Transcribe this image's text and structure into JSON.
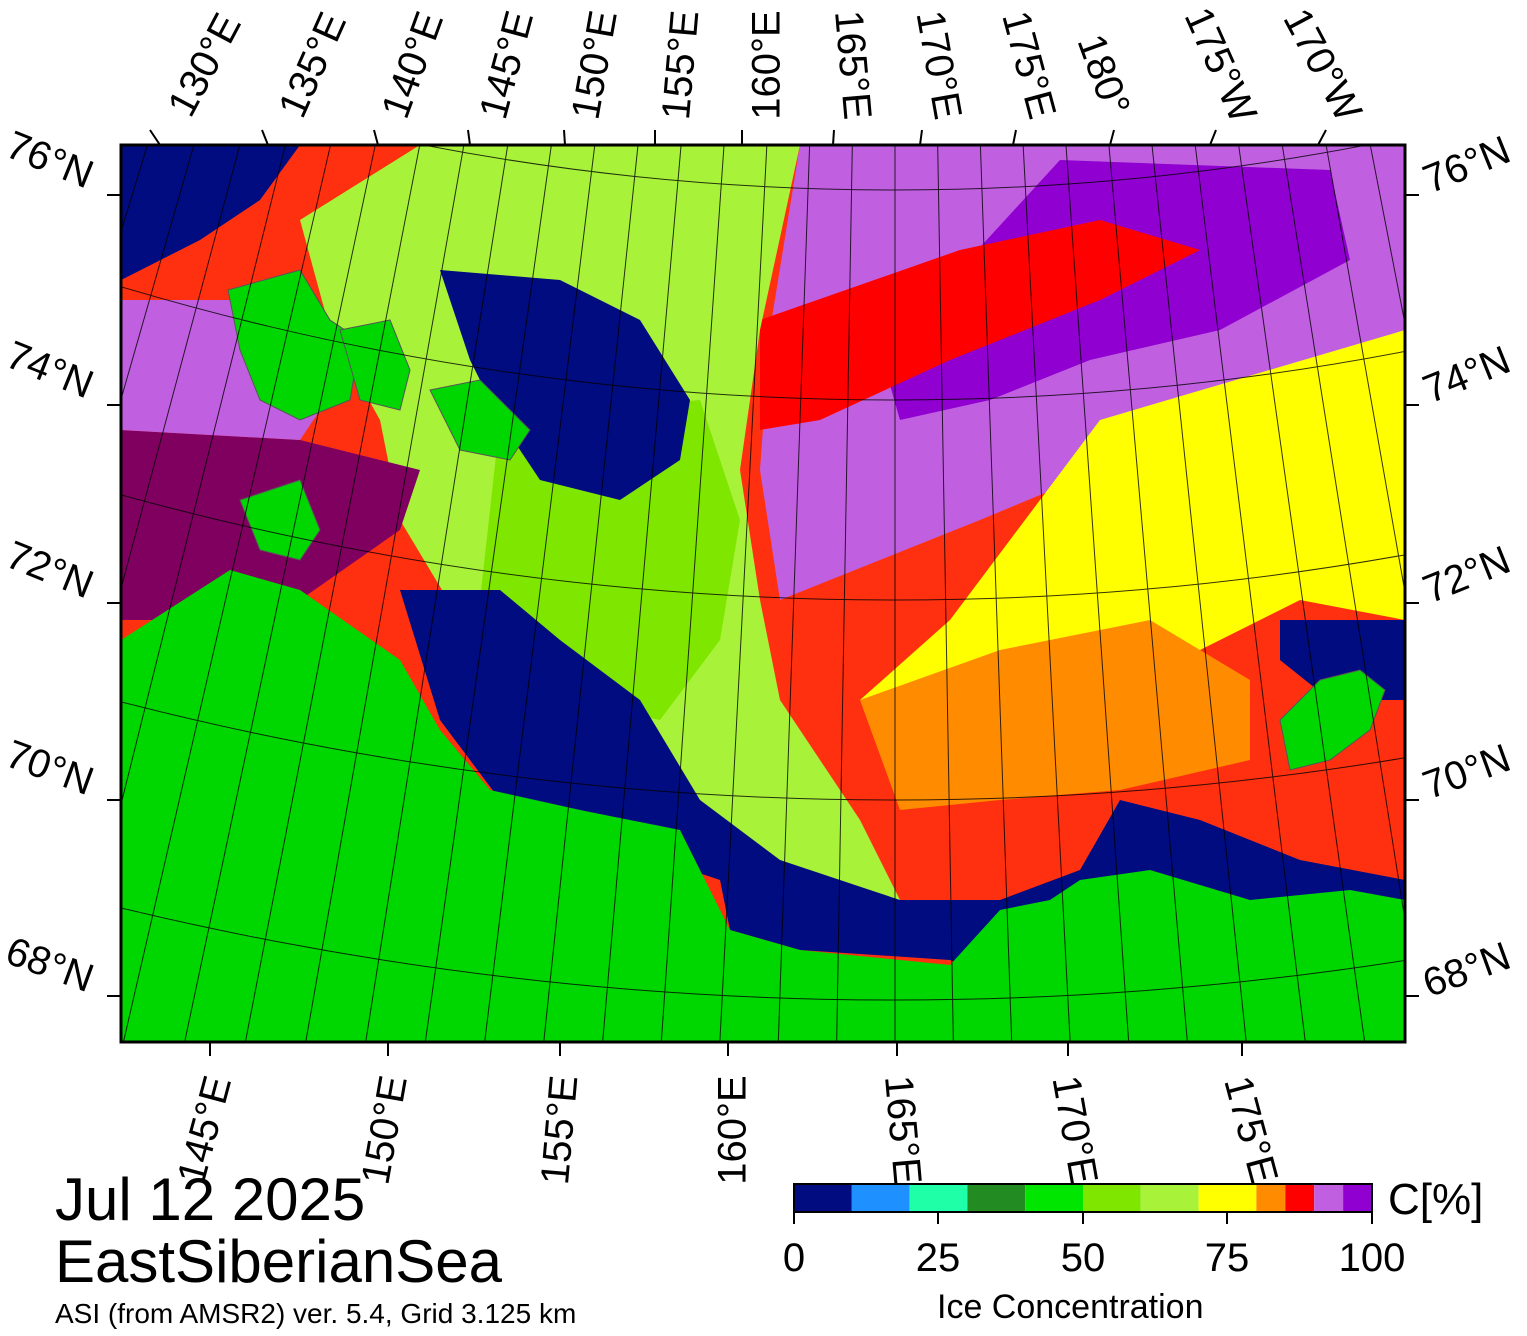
{
  "date": "Jul 12 2025",
  "region": "EastSiberianSea",
  "source": "ASI (from AMSR2) ver. 5.4,  Grid 3.125 km",
  "colorbar": {
    "title": "Ice Concentration",
    "unit": "C[%]",
    "ticks": [
      "0",
      "25",
      "50",
      "75",
      "100"
    ],
    "colors": [
      "#000c80",
      "#1e90ff",
      "#1fffa8",
      "#228b22",
      "#00e600",
      "#7fe600",
      "#a8f23a",
      "#ffff00",
      "#ff8c00",
      "#ff0000",
      "#c060e0",
      "#9000d0",
      "#800060"
    ]
  },
  "labels": {
    "top_lon": [
      "130°E",
      "135°E",
      "140°E",
      "145°E",
      "150°E",
      "155°E",
      "160°E",
      "165°E",
      "170°E",
      "175°E",
      "180°",
      "175°W",
      "170°W"
    ],
    "bottom_lon": [
      "145°E",
      "150°E",
      "155°E",
      "160°E",
      "165°E",
      "170°E",
      "175°E"
    ],
    "left_lat": [
      "76°N",
      "74°N",
      "72°N",
      "70°N",
      "68°N"
    ],
    "right_lat": [
      "76°N",
      "74°N",
      "72°N",
      "70°N",
      "68°N"
    ]
  },
  "map_colors": {
    "land": "#00d600",
    "open_water": "#000c80",
    "frame": "#000000"
  }
}
